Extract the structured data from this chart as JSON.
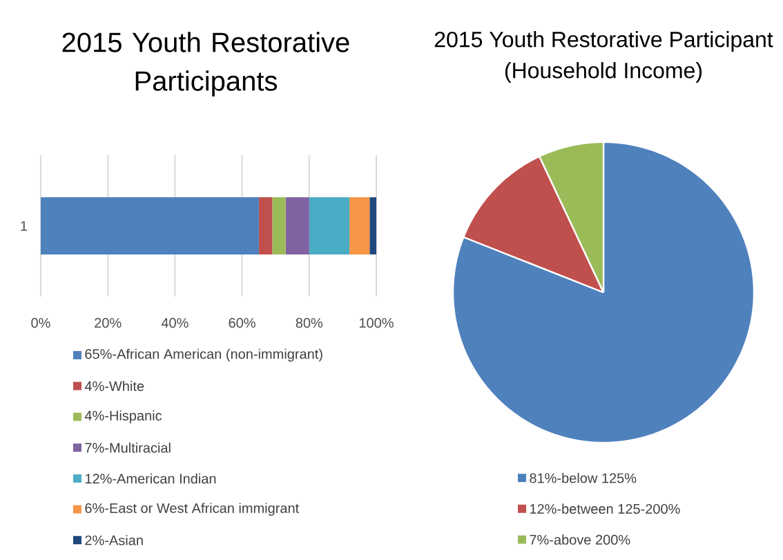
{
  "chart_data": [
    {
      "type": "bar",
      "title": "2015 Youth Restorative Participants",
      "orientation": "horizontal",
      "stacked": true,
      "categories": [
        "1"
      ],
      "series": [
        {
          "name": "65%-African American (non-immigrant)",
          "color": "#4f81bd",
          "values": [
            65
          ]
        },
        {
          "name": "4%-White",
          "color": "#c0504d",
          "values": [
            4
          ]
        },
        {
          "name": "4%-Hispanic",
          "color": "#9bbb59",
          "values": [
            4
          ]
        },
        {
          "name": "7%-Multiracial",
          "color": "#8064a2",
          "values": [
            7
          ]
        },
        {
          "name": "12%-American Indian",
          "color": "#4bacc6",
          "values": [
            12
          ]
        },
        {
          "name": "6%-East or West African immigrant",
          "color": "#f79646",
          "values": [
            6
          ]
        },
        {
          "name": "2%-Asian",
          "color": "#1f497d",
          "values": [
            2
          ]
        }
      ],
      "xlim": [
        0,
        100
      ],
      "xticks": [
        {
          "value": 0,
          "label": "0%"
        },
        {
          "value": 20,
          "label": "20%"
        },
        {
          "value": 40,
          "label": "40%"
        },
        {
          "value": 60,
          "label": "60%"
        },
        {
          "value": 80,
          "label": "80%"
        },
        {
          "value": 100,
          "label": "100%"
        }
      ],
      "grid": "x",
      "legend": "bottom"
    },
    {
      "type": "pie",
      "title": "2015 Youth Restorative Participant",
      "subtitle": "(Household Income)",
      "categories": [
        "81%-below 125%",
        "12%-between 125-200%",
        "7%-above 200%"
      ],
      "values": [
        81,
        12,
        7
      ],
      "colors": [
        "#4f81bd",
        "#c0504d",
        "#9bbb59"
      ],
      "legend": "bottom"
    }
  ]
}
